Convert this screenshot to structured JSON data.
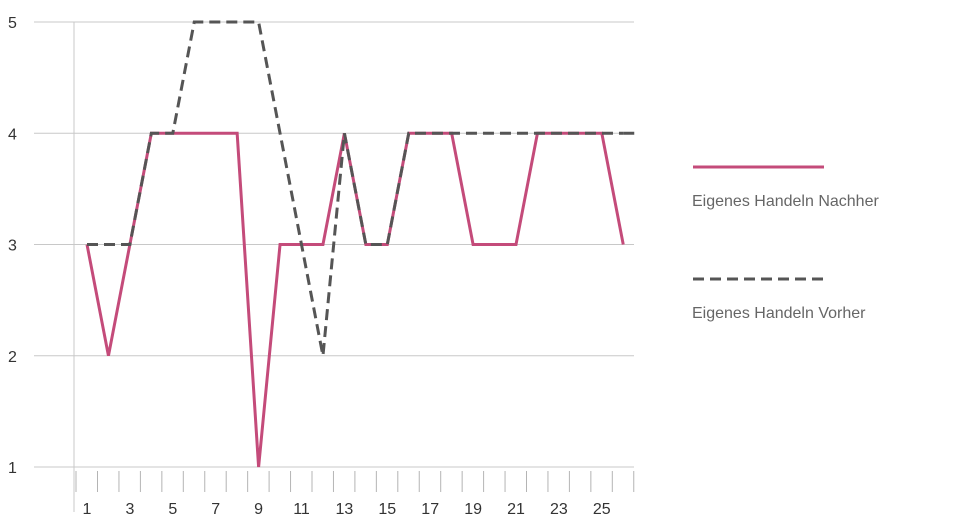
{
  "chart_data": {
    "type": "line",
    "title": "",
    "xlabel": "",
    "ylabel": "",
    "x": [
      1,
      2,
      3,
      4,
      5,
      6,
      7,
      8,
      9,
      10,
      11,
      12,
      13,
      14,
      15,
      16,
      17,
      18,
      19,
      20,
      21,
      22,
      23,
      24,
      25,
      26
    ],
    "x_tick_labels": [
      "1",
      "3",
      "5",
      "7",
      "9",
      "11",
      "13",
      "15",
      "17",
      "19",
      "21",
      "23",
      "25"
    ],
    "y_tick_labels": [
      "1",
      "2",
      "3",
      "4",
      "5"
    ],
    "ylim": [
      1,
      5
    ],
    "grid": "horizontal",
    "legend_position": "right",
    "series": [
      {
        "name": "Eigenes Handeln Nachher",
        "color": "#c44b7a",
        "style": "solid",
        "values": [
          3,
          2,
          3,
          4,
          4,
          4,
          4,
          4,
          1,
          3,
          3,
          3,
          4,
          3,
          3,
          4,
          4,
          4,
          3,
          3,
          3,
          4,
          4,
          4,
          4,
          3
        ]
      },
      {
        "name": "Eigenes Handeln Vorher",
        "color": "#555555",
        "style": "dashed",
        "values": [
          3,
          3,
          3,
          4,
          4,
          5,
          5,
          5,
          5,
          4,
          3,
          2,
          4,
          3,
          3,
          4,
          4,
          4,
          4,
          4,
          4,
          4,
          4,
          4,
          4,
          4
        ]
      }
    ]
  }
}
